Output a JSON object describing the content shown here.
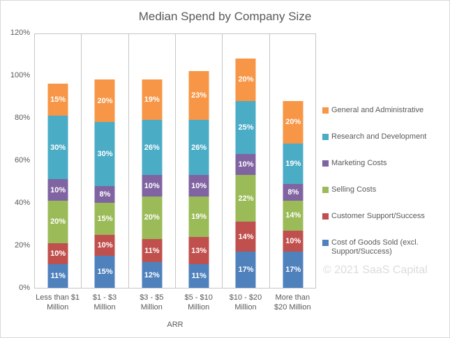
{
  "chart_data": {
    "type": "bar",
    "stacked": true,
    "title": "Median Spend by Company Size",
    "xlabel": "ARR",
    "ylabel": "",
    "ylim": [
      0,
      120
    ],
    "ytick_values": [
      0,
      20,
      40,
      60,
      80,
      100,
      120
    ],
    "ytick_labels": [
      "0%",
      "20%",
      "40%",
      "60%",
      "80%",
      "100%",
      "120%"
    ],
    "grid": "vertical-category-dividers-only",
    "legend_position": "right",
    "data_labels": "percent-inside-segments",
    "categories": [
      "Less than $1 Million",
      "$1 - $3 Million",
      "$3 - $5 Million",
      "$5 - $10 Million",
      "$10 - $20 Million",
      "More than $20 Million"
    ],
    "series": [
      {
        "name": "Cost of Goods Sold (excl. Support/Success)",
        "color": "#4F81BD",
        "values": [
          11,
          15,
          12,
          11,
          17,
          17
        ]
      },
      {
        "name": "Customer Support/Success",
        "color": "#C0504D",
        "values": [
          10,
          10,
          11,
          13,
          14,
          10
        ]
      },
      {
        "name": "Selling Costs",
        "color": "#9BBB59",
        "values": [
          20,
          15,
          20,
          19,
          22,
          14
        ]
      },
      {
        "name": "Marketing Costs",
        "color": "#8064A2",
        "values": [
          10,
          8,
          10,
          10,
          10,
          8
        ]
      },
      {
        "name": "Research and Development",
        "color": "#4BACC6",
        "values": [
          30,
          30,
          26,
          26,
          25,
          19
        ]
      },
      {
        "name": "General and Administrative",
        "color": "#F79646",
        "values": [
          15,
          20,
          19,
          23,
          20,
          20
        ]
      }
    ],
    "totals": [
      96,
      98,
      98,
      102,
      108,
      88
    ],
    "watermark": "© 2021 SaaS Capital",
    "colors": {
      "text": "#595959",
      "axis_line": "#C6C6C6",
      "watermark": "#DCDCDC",
      "data_label": "#FFFFFF",
      "background": "#FFFFFF"
    }
  }
}
